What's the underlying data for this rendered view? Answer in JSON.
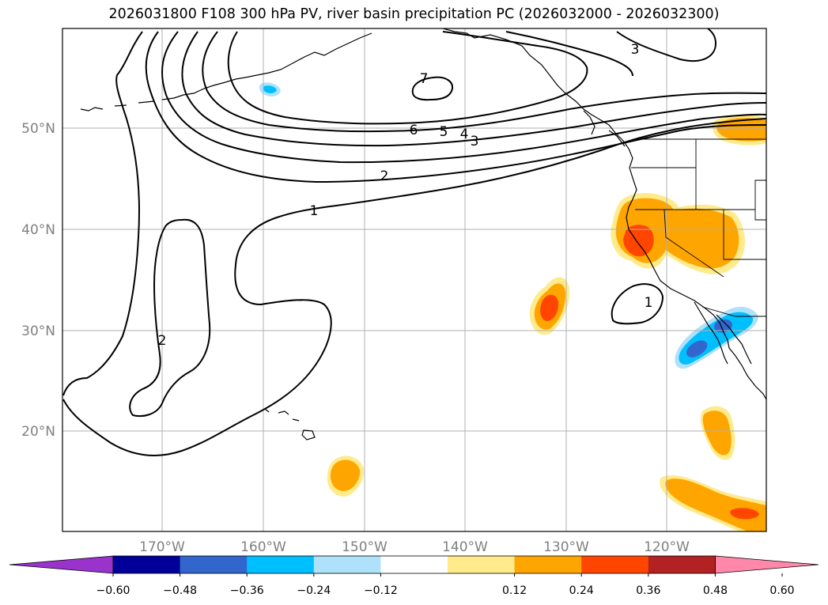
{
  "title": "2026031800 F108 300 hPa PV, river basin precipitation PC (2026032000 - 2026032300)",
  "colors": {
    "grid": "#b0b0b0",
    "tick_label": "#808080",
    "contour": "#000000"
  },
  "map": {
    "lat_labels": [
      "50°N",
      "40°N",
      "30°N",
      "20°N"
    ],
    "lon_labels": [
      "170°W",
      "160°W",
      "150°W",
      "140°W",
      "130°W",
      "120°W"
    ],
    "contour_labels": [
      "1",
      "2",
      "3",
      "4",
      "5",
      "6",
      "7",
      "3",
      "2",
      "1"
    ]
  },
  "colorbar": {
    "ticks": [
      "−0.60",
      "−0.48",
      "−0.36",
      "−0.24",
      "−0.12",
      "0.12",
      "0.24",
      "0.36",
      "0.48",
      "0.60"
    ],
    "colors": [
      "#9933cc",
      "#000099",
      "#3366cc",
      "#00bfff",
      "#afe1fa",
      "#ffffff",
      "#ffea8c",
      "#ffa500",
      "#ff4500",
      "#b22222",
      "#ff88aa"
    ]
  }
}
